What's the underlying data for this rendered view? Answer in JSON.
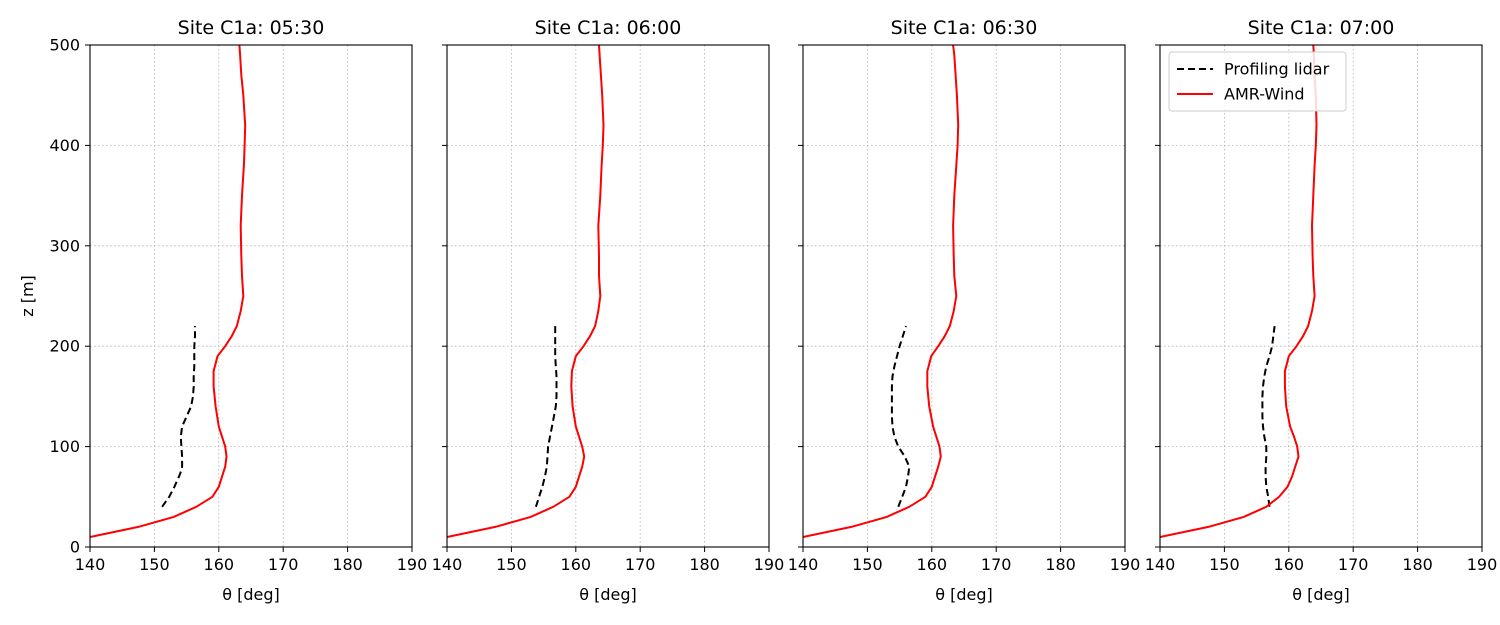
{
  "figure": {
    "ylabel": "z [m]"
  },
  "legend": {
    "entries": [
      {
        "label": "Profiling lidar",
        "color": "#000000",
        "style": "dashed"
      },
      {
        "label": "AMR-Wind",
        "color": "#ff0000",
        "style": "solid"
      }
    ],
    "placement": "upper-left of last panel"
  },
  "chart_data": [
    {
      "type": "line",
      "title": "Site C1a: 05:30",
      "xlabel": "θ [deg]",
      "ylabel": "z [m]",
      "xlim": [
        140,
        190
      ],
      "ylim": [
        0,
        500
      ],
      "xticks": [
        140,
        150,
        160,
        170,
        180,
        190
      ],
      "yticks": [
        0,
        100,
        200,
        300,
        400,
        500
      ],
      "grid": true,
      "series": [
        {
          "name": "Profiling lidar",
          "color": "#000000",
          "style": "dashed",
          "points": [
            [
              151.2,
              40
            ],
            [
              152.3,
              50
            ],
            [
              153.1,
              60
            ],
            [
              153.8,
              70
            ],
            [
              154.3,
              78
            ],
            [
              154.3,
              90
            ],
            [
              154.2,
              100
            ],
            [
              154.1,
              110
            ],
            [
              154.3,
              120
            ],
            [
              155.0,
              130
            ],
            [
              155.7,
              140
            ],
            [
              156.0,
              150
            ],
            [
              156.1,
              160
            ],
            [
              156.1,
              170
            ],
            [
              156.2,
              180
            ],
            [
              156.2,
              190
            ],
            [
              156.2,
              200
            ],
            [
              156.3,
              210
            ],
            [
              156.3,
              220
            ]
          ]
        },
        {
          "name": "AMR-Wind",
          "color": "#ff0000",
          "style": "solid",
          "points": [
            [
              140.0,
              10
            ],
            [
              147.5,
              20
            ],
            [
              153.0,
              30
            ],
            [
              156.5,
              40
            ],
            [
              159.0,
              50
            ],
            [
              160.0,
              60
            ],
            [
              160.5,
              70
            ],
            [
              161.0,
              80
            ],
            [
              161.2,
              90
            ],
            [
              161.0,
              100
            ],
            [
              160.5,
              110
            ],
            [
              160.0,
              120
            ],
            [
              159.5,
              140
            ],
            [
              159.2,
              160
            ],
            [
              159.2,
              175
            ],
            [
              159.8,
              190
            ],
            [
              161.0,
              200
            ],
            [
              162.0,
              210
            ],
            [
              162.8,
              220
            ],
            [
              163.4,
              235
            ],
            [
              163.8,
              250
            ],
            [
              163.6,
              270
            ],
            [
              163.5,
              290
            ],
            [
              163.4,
              320
            ],
            [
              163.6,
              350
            ],
            [
              163.9,
              380
            ],
            [
              164.0,
              400
            ],
            [
              164.1,
              420
            ],
            [
              163.8,
              450
            ],
            [
              163.5,
              470
            ],
            [
              163.3,
              490
            ],
            [
              163.2,
              500
            ]
          ]
        }
      ]
    },
    {
      "type": "line",
      "title": "Site C1a: 06:00",
      "xlabel": "θ [deg]",
      "xlim": [
        140,
        190
      ],
      "ylim": [
        0,
        500
      ],
      "xticks": [
        140,
        150,
        160,
        170,
        180,
        190
      ],
      "yticks": [
        0,
        100,
        200,
        300,
        400,
        500
      ],
      "grid": true,
      "series": [
        {
          "name": "Profiling lidar",
          "color": "#000000",
          "style": "dashed",
          "points": [
            [
              153.8,
              40
            ],
            [
              154.3,
              50
            ],
            [
              154.8,
              60
            ],
            [
              155.2,
              70
            ],
            [
              155.5,
              80
            ],
            [
              155.6,
              90
            ],
            [
              155.7,
              100
            ],
            [
              156.0,
              110
            ],
            [
              156.3,
              120
            ],
            [
              156.6,
              130
            ],
            [
              156.9,
              140
            ],
            [
              157.0,
              150
            ],
            [
              157.0,
              160
            ],
            [
              157.0,
              170
            ],
            [
              156.9,
              180
            ],
            [
              156.8,
              190
            ],
            [
              156.8,
              200
            ],
            [
              156.8,
              210
            ],
            [
              156.8,
              220
            ]
          ]
        },
        {
          "name": "AMR-Wind",
          "color": "#ff0000",
          "style": "solid",
          "points": [
            [
              140.0,
              10
            ],
            [
              147.5,
              20
            ],
            [
              153.0,
              30
            ],
            [
              156.5,
              40
            ],
            [
              159.0,
              50
            ],
            [
              160.0,
              60
            ],
            [
              160.5,
              70
            ],
            [
              161.0,
              80
            ],
            [
              161.3,
              90
            ],
            [
              161.0,
              100
            ],
            [
              160.5,
              110
            ],
            [
              160.0,
              120
            ],
            [
              159.5,
              140
            ],
            [
              159.3,
              160
            ],
            [
              159.4,
              175
            ],
            [
              160.0,
              190
            ],
            [
              161.2,
              200
            ],
            [
              162.2,
              210
            ],
            [
              163.0,
              220
            ],
            [
              163.5,
              235
            ],
            [
              163.8,
              250
            ],
            [
              163.6,
              270
            ],
            [
              163.6,
              290
            ],
            [
              163.5,
              320
            ],
            [
              163.8,
              350
            ],
            [
              164.0,
              380
            ],
            [
              164.2,
              400
            ],
            [
              164.3,
              420
            ],
            [
              164.1,
              450
            ],
            [
              163.9,
              470
            ],
            [
              163.7,
              490
            ],
            [
              163.6,
              500
            ]
          ]
        }
      ]
    },
    {
      "type": "line",
      "title": "Site C1a: 06:30",
      "xlabel": "θ [deg]",
      "xlim": [
        140,
        190
      ],
      "ylim": [
        0,
        500
      ],
      "xticks": [
        140,
        150,
        160,
        170,
        180,
        190
      ],
      "yticks": [
        0,
        100,
        200,
        300,
        400,
        500
      ],
      "grid": true,
      "series": [
        {
          "name": "Profiling lidar",
          "color": "#000000",
          "style": "dashed",
          "points": [
            [
              154.8,
              40
            ],
            [
              155.4,
              50
            ],
            [
              156.0,
              60
            ],
            [
              156.3,
              70
            ],
            [
              156.5,
              80
            ],
            [
              155.8,
              90
            ],
            [
              154.8,
              100
            ],
            [
              154.2,
              110
            ],
            [
              153.9,
              120
            ],
            [
              153.8,
              130
            ],
            [
              153.8,
              140
            ],
            [
              153.8,
              150
            ],
            [
              153.8,
              160
            ],
            [
              153.9,
              170
            ],
            [
              154.2,
              180
            ],
            [
              154.6,
              190
            ],
            [
              155.0,
              200
            ],
            [
              155.5,
              210
            ],
            [
              156.0,
              220
            ]
          ]
        },
        {
          "name": "AMR-Wind",
          "color": "#ff0000",
          "style": "solid",
          "points": [
            [
              140.0,
              10
            ],
            [
              147.5,
              20
            ],
            [
              153.0,
              30
            ],
            [
              156.5,
              40
            ],
            [
              159.0,
              50
            ],
            [
              160.0,
              60
            ],
            [
              160.5,
              70
            ],
            [
              161.0,
              80
            ],
            [
              161.4,
              90
            ],
            [
              161.2,
              100
            ],
            [
              160.7,
              110
            ],
            [
              160.2,
              120
            ],
            [
              159.6,
              140
            ],
            [
              159.3,
              160
            ],
            [
              159.3,
              175
            ],
            [
              159.9,
              190
            ],
            [
              161.0,
              200
            ],
            [
              162.0,
              210
            ],
            [
              162.8,
              220
            ],
            [
              163.4,
              235
            ],
            [
              163.8,
              250
            ],
            [
              163.5,
              270
            ],
            [
              163.4,
              290
            ],
            [
              163.3,
              320
            ],
            [
              163.5,
              350
            ],
            [
              163.8,
              380
            ],
            [
              164.0,
              400
            ],
            [
              164.1,
              420
            ],
            [
              163.9,
              450
            ],
            [
              163.7,
              470
            ],
            [
              163.5,
              490
            ],
            [
              163.3,
              500
            ]
          ]
        }
      ]
    },
    {
      "type": "line",
      "title": "Site C1a: 07:00",
      "xlabel": "θ [deg]",
      "xlim": [
        140,
        190
      ],
      "ylim": [
        0,
        500
      ],
      "xticks": [
        140,
        150,
        160,
        170,
        180,
        190
      ],
      "yticks": [
        0,
        100,
        200,
        300,
        400,
        500
      ],
      "grid": true,
      "series": [
        {
          "name": "Profiling lidar",
          "color": "#000000",
          "style": "dashed",
          "points": [
            [
              157.0,
              40
            ],
            [
              156.8,
              50
            ],
            [
              156.5,
              60
            ],
            [
              156.4,
              70
            ],
            [
              156.4,
              80
            ],
            [
              156.5,
              90
            ],
            [
              156.5,
              100
            ],
            [
              156.2,
              110
            ],
            [
              156.0,
              120
            ],
            [
              155.9,
              130
            ],
            [
              155.9,
              140
            ],
            [
              155.9,
              150
            ],
            [
              156.0,
              160
            ],
            [
              156.2,
              170
            ],
            [
              156.5,
              180
            ],
            [
              157.0,
              190
            ],
            [
              157.4,
              200
            ],
            [
              157.6,
              210
            ],
            [
              157.8,
              220
            ]
          ]
        },
        {
          "name": "AMR-Wind",
          "color": "#ff0000",
          "style": "solid",
          "points": [
            [
              140.0,
              10
            ],
            [
              147.5,
              20
            ],
            [
              153.0,
              30
            ],
            [
              156.5,
              40
            ],
            [
              158.5,
              50
            ],
            [
              159.8,
              60
            ],
            [
              160.5,
              70
            ],
            [
              161.0,
              80
            ],
            [
              161.5,
              90
            ],
            [
              161.3,
              100
            ],
            [
              160.8,
              110
            ],
            [
              160.2,
              120
            ],
            [
              159.6,
              140
            ],
            [
              159.4,
              160
            ],
            [
              159.4,
              175
            ],
            [
              160.0,
              190
            ],
            [
              161.2,
              200
            ],
            [
              162.2,
              210
            ],
            [
              163.0,
              220
            ],
            [
              163.6,
              235
            ],
            [
              164.0,
              250
            ],
            [
              163.8,
              270
            ],
            [
              163.7,
              290
            ],
            [
              163.6,
              320
            ],
            [
              163.8,
              350
            ],
            [
              164.0,
              380
            ],
            [
              164.2,
              400
            ],
            [
              164.3,
              420
            ],
            [
              164.2,
              450
            ],
            [
              164.0,
              470
            ],
            [
              163.9,
              490
            ],
            [
              163.8,
              500
            ]
          ]
        }
      ]
    }
  ]
}
